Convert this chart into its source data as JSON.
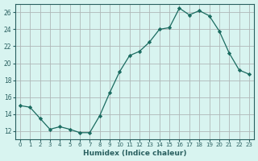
{
  "x": [
    0,
    1,
    2,
    3,
    4,
    5,
    6,
    7,
    8,
    9,
    10,
    11,
    12,
    13,
    14,
    15,
    16,
    17,
    18,
    19,
    20,
    21,
    22,
    23
  ],
  "y": [
    15.0,
    14.8,
    13.5,
    12.2,
    12.5,
    12.2,
    11.8,
    11.8,
    13.8,
    16.5,
    19.0,
    20.9,
    21.4,
    22.5,
    24.0,
    24.2,
    26.5,
    25.7,
    26.2,
    25.6,
    23.8,
    21.2,
    19.2,
    18.7
  ],
  "xlabel": "Humidex (Indice chaleur)",
  "ylabel": "",
  "bg_color": "#d8f4f0",
  "grid_color": "#b0b8b8",
  "line_color": "#1a6b60",
  "marker_color": "#1a6b60",
  "ylim": [
    11,
    27
  ],
  "yticks": [
    12,
    14,
    16,
    18,
    20,
    22,
    24,
    26
  ],
  "xticks": [
    0,
    1,
    2,
    3,
    4,
    5,
    6,
    7,
    8,
    9,
    10,
    11,
    12,
    13,
    14,
    15,
    16,
    17,
    18,
    19,
    20,
    21,
    22,
    23
  ],
  "tick_color": "#2a6060",
  "label_color": "#2a6060",
  "spine_color": "#2a6060"
}
